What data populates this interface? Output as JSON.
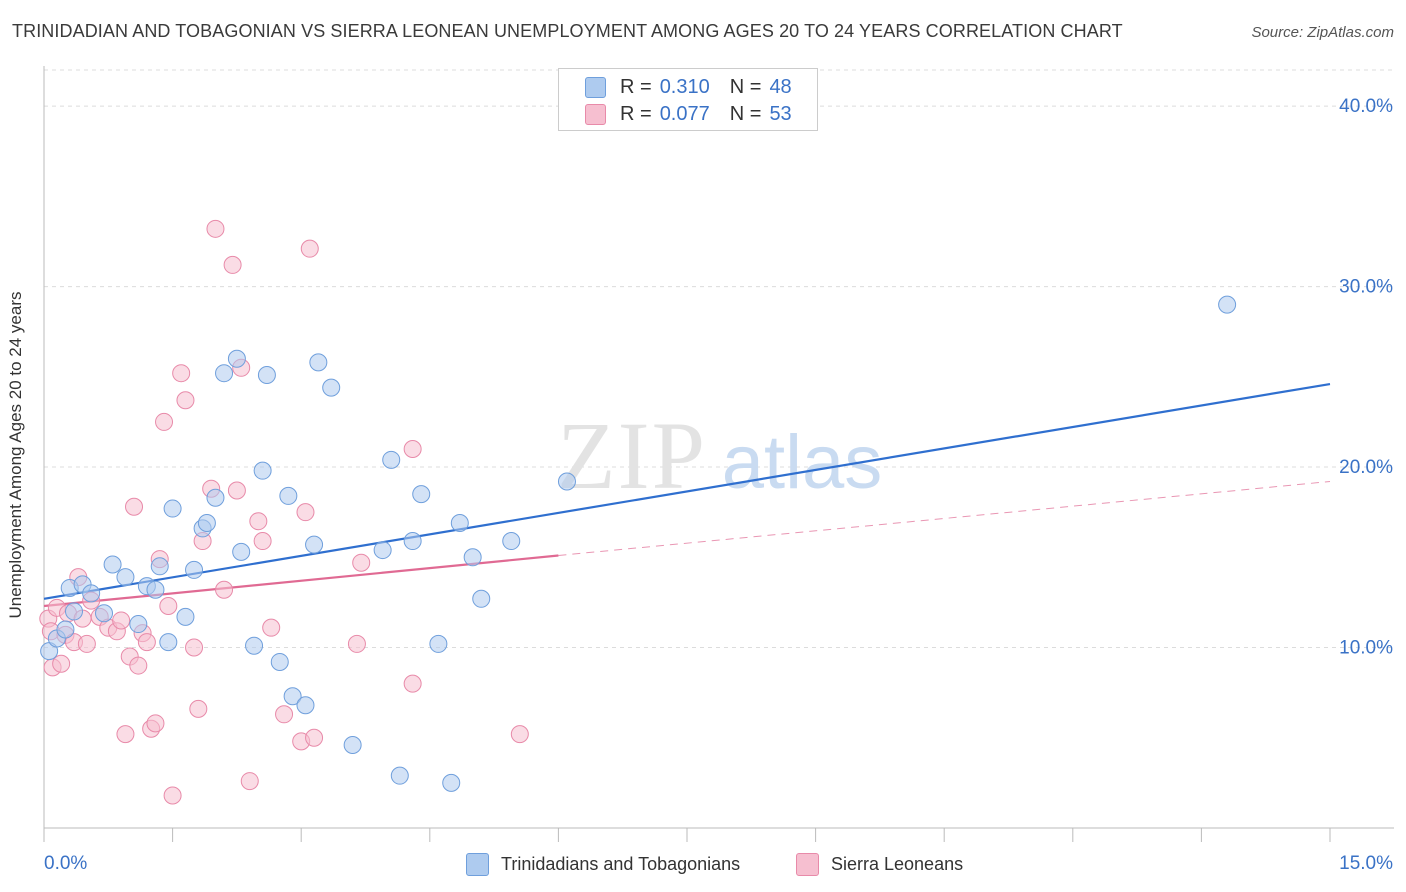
{
  "title": "TRINIDADIAN AND TOBAGONIAN VS SIERRA LEONEAN UNEMPLOYMENT AMONG AGES 20 TO 24 YEARS CORRELATION CHART",
  "source": "Source: ZipAtlas.com",
  "watermark": {
    "zip": "ZIP",
    "atlas": "atlas"
  },
  "legend": {
    "r_label": "R =",
    "n_label": "N =",
    "series": [
      {
        "r": "0.310",
        "n": "48"
      },
      {
        "r": "0.077",
        "n": "53"
      }
    ]
  },
  "colors": {
    "blue_fill": "#aecbef",
    "blue_stroke": "#6f9fdc",
    "blue_line": "#2f6fcf",
    "pink_fill": "#f6bfd0",
    "pink_stroke": "#e88aa9",
    "pink_line": "#e06a93",
    "tick_label": "#3a72c6"
  },
  "chart_data": {
    "type": "scatter",
    "title": "TRINIDADIAN AND TOBAGONIAN VS SIERRA LEONEAN UNEMPLOYMENT AMONG AGES 20 TO 24 YEARS CORRELATION CHART",
    "xlabel": "",
    "ylabel": "Unemployment Among Ages 20 to 24 years",
    "xlim": [
      0,
      15
    ],
    "ylim": [
      0,
      42
    ],
    "x_tick_labels": [
      "0.0%",
      "15.0%"
    ],
    "y_ticks": [
      10,
      20,
      30,
      40
    ],
    "y_tick_labels": [
      "10.0%",
      "20.0%",
      "30.0%",
      "40.0%"
    ],
    "grid": true,
    "legend_position": "top-center",
    "series": [
      {
        "name": "Trinidadians and Tobagonians",
        "color": "#aecbef",
        "trend": {
          "x": [
            0,
            15
          ],
          "y": [
            12.7,
            24.6
          ],
          "style": "solid"
        },
        "points": [
          [
            0.06,
            9.8
          ],
          [
            0.15,
            10.5
          ],
          [
            0.25,
            11.0
          ],
          [
            0.3,
            13.3
          ],
          [
            0.35,
            12.0
          ],
          [
            0.45,
            13.5
          ],
          [
            0.55,
            13.0
          ],
          [
            0.7,
            11.9
          ],
          [
            0.8,
            14.6
          ],
          [
            0.95,
            13.9
          ],
          [
            1.1,
            11.3
          ],
          [
            1.2,
            13.4
          ],
          [
            1.3,
            13.2
          ],
          [
            1.35,
            14.5
          ],
          [
            1.45,
            10.3
          ],
          [
            1.5,
            17.7
          ],
          [
            1.65,
            11.7
          ],
          [
            1.75,
            14.3
          ],
          [
            1.85,
            16.6
          ],
          [
            1.9,
            16.9
          ],
          [
            2.0,
            18.3
          ],
          [
            2.1,
            25.2
          ],
          [
            2.25,
            26.0
          ],
          [
            2.3,
            15.3
          ],
          [
            2.45,
            10.1
          ],
          [
            2.6,
            25.1
          ],
          [
            2.55,
            19.8
          ],
          [
            2.75,
            9.2
          ],
          [
            2.85,
            18.4
          ],
          [
            2.9,
            7.3
          ],
          [
            3.05,
            6.8
          ],
          [
            3.15,
            15.7
          ],
          [
            3.2,
            25.8
          ],
          [
            3.35,
            24.4
          ],
          [
            3.6,
            4.6
          ],
          [
            3.95,
            15.4
          ],
          [
            4.05,
            20.4
          ],
          [
            4.15,
            2.9
          ],
          [
            4.3,
            15.9
          ],
          [
            4.4,
            18.5
          ],
          [
            4.6,
            10.2
          ],
          [
            4.75,
            2.5
          ],
          [
            4.85,
            16.9
          ],
          [
            5.0,
            15.0
          ],
          [
            5.1,
            12.7
          ],
          [
            5.45,
            15.9
          ],
          [
            6.1,
            19.2
          ],
          [
            13.8,
            29.0
          ]
        ]
      },
      {
        "name": "Sierra Leoneans",
        "color": "#f6bfd0",
        "trend": {
          "x": [
            0,
            6
          ],
          "y": [
            12.3,
            15.1
          ],
          "style": "solid",
          "extended_x": [
            6,
            15
          ],
          "extended_y": [
            15.1,
            19.2
          ],
          "extended_style": "dashed"
        },
        "points": [
          [
            0.05,
            11.6
          ],
          [
            0.08,
            10.9
          ],
          [
            0.1,
            8.9
          ],
          [
            0.15,
            12.2
          ],
          [
            0.2,
            9.1
          ],
          [
            0.25,
            10.7
          ],
          [
            0.28,
            11.9
          ],
          [
            0.35,
            10.3
          ],
          [
            0.4,
            13.9
          ],
          [
            0.45,
            11.6
          ],
          [
            0.5,
            10.2
          ],
          [
            0.55,
            12.6
          ],
          [
            0.65,
            11.7
          ],
          [
            0.75,
            11.1
          ],
          [
            0.85,
            10.9
          ],
          [
            0.9,
            11.5
          ],
          [
            0.95,
            5.2
          ],
          [
            1.0,
            9.5
          ],
          [
            1.05,
            17.8
          ],
          [
            1.1,
            9.0
          ],
          [
            1.15,
            10.8
          ],
          [
            1.2,
            10.3
          ],
          [
            1.25,
            5.5
          ],
          [
            1.3,
            5.8
          ],
          [
            1.35,
            14.9
          ],
          [
            1.4,
            22.5
          ],
          [
            1.45,
            12.3
          ],
          [
            1.5,
            1.8
          ],
          [
            1.6,
            25.2
          ],
          [
            1.65,
            23.7
          ],
          [
            1.75,
            10.0
          ],
          [
            1.8,
            6.6
          ],
          [
            1.85,
            15.9
          ],
          [
            1.95,
            18.8
          ],
          [
            2.0,
            33.2
          ],
          [
            2.1,
            13.2
          ],
          [
            2.2,
            31.2
          ],
          [
            2.25,
            18.7
          ],
          [
            2.3,
            25.5
          ],
          [
            2.4,
            2.6
          ],
          [
            2.5,
            17.0
          ],
          [
            2.55,
            15.9
          ],
          [
            2.65,
            11.1
          ],
          [
            2.8,
            6.3
          ],
          [
            3.0,
            4.8
          ],
          [
            3.05,
            17.5
          ],
          [
            3.1,
            32.1
          ],
          [
            3.15,
            5.0
          ],
          [
            3.65,
            10.2
          ],
          [
            3.7,
            14.7
          ],
          [
            4.3,
            21.0
          ],
          [
            4.3,
            8.0
          ],
          [
            5.55,
            5.2
          ]
        ]
      }
    ]
  },
  "bottom_legend": [
    "Trinidadians and Tobagonians",
    "Sierra Leoneans"
  ]
}
